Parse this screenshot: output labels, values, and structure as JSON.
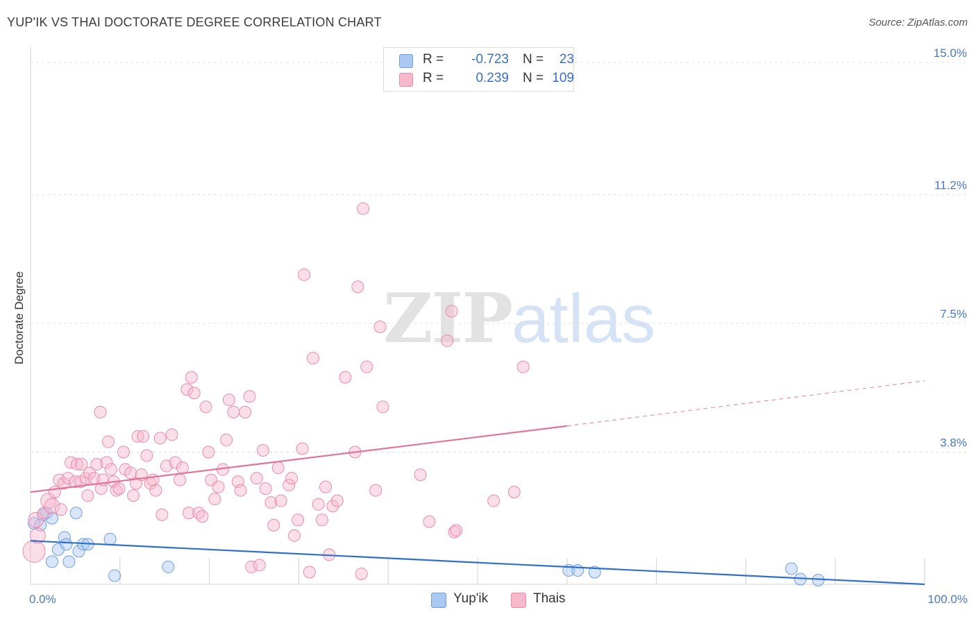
{
  "title": "YUP'IK VS THAI DOCTORATE DEGREE CORRELATION CHART",
  "source": "Source: ZipAtlas.com",
  "watermark": {
    "zip": "ZIP",
    "atlas": "atlas"
  },
  "legend": {
    "rows": [
      {
        "r_label": "R =",
        "r_value": "-0.723",
        "n_label": "N =",
        "n_value": "23",
        "color": "#aac8f2",
        "border": "#6f9ee0"
      },
      {
        "r_label": "R =",
        "r_value": "0.239",
        "n_label": "N =",
        "n_value": "109",
        "color": "#f7b8cc",
        "border": "#e98aa8"
      }
    ]
  },
  "bottom_legend": [
    {
      "label": "Yup'ik",
      "color": "#aac8f2",
      "border": "#6f9ee0"
    },
    {
      "label": "Thais",
      "color": "#f7b8cc",
      "border": "#e98aa8"
    }
  ],
  "chart_data": {
    "type": "scatter",
    "title": "YUP'IK VS THAI DOCTORATE DEGREE CORRELATION CHART",
    "xlabel": "",
    "ylabel": "Doctorate Degree",
    "xlim": [
      0,
      100
    ],
    "ylim": [
      0,
      15.0
    ],
    "x_tick_labels": [
      "0.0%",
      "100.0%"
    ],
    "y_ticks": [
      {
        "value": 3.8,
        "label": "3.8%"
      },
      {
        "value": 7.5,
        "label": "7.5%"
      },
      {
        "value": 11.2,
        "label": "11.2%"
      },
      {
        "value": 15.0,
        "label": "15.0%"
      }
    ],
    "series": [
      {
        "name": "Yup'ik",
        "color": "#aac8f2",
        "stroke": "#6f9ee0",
        "line_color": "#2e6fcc",
        "points": [
          [
            0.4,
            1.75
          ],
          [
            1.1,
            1.7
          ],
          [
            1.8,
            2.05
          ],
          [
            1.4,
            2.0
          ],
          [
            2.4,
            1.9
          ],
          [
            2.4,
            0.65
          ],
          [
            3.8,
            1.35
          ],
          [
            3.1,
            1.0
          ],
          [
            4.0,
            1.15
          ],
          [
            4.3,
            0.65
          ],
          [
            5.1,
            2.05
          ],
          [
            5.4,
            0.95
          ],
          [
            5.9,
            1.15
          ],
          [
            6.4,
            1.15
          ],
          [
            8.9,
            1.3
          ],
          [
            9.4,
            0.25
          ],
          [
            15.4,
            0.5
          ],
          [
            60.2,
            0.4
          ],
          [
            61.2,
            0.4
          ],
          [
            63.1,
            0.35
          ],
          [
            85.1,
            0.45
          ],
          [
            86.1,
            0.15
          ],
          [
            88.1,
            0.12
          ]
        ],
        "trend": {
          "x0": 0,
          "y0": 1.25,
          "x1": 100,
          "y1": 0.0
        }
      },
      {
        "name": "Thais",
        "color": "#f7b8cc",
        "stroke": "#e98aa8",
        "line_color": "#e2749a",
        "points": [
          [
            0.4,
            0.95
          ],
          [
            0.6,
            1.85
          ],
          [
            0.8,
            1.4
          ],
          [
            1.5,
            2.05
          ],
          [
            2.0,
            2.4
          ],
          [
            2.4,
            2.25
          ],
          [
            2.7,
            2.65
          ],
          [
            3.2,
            3.0
          ],
          [
            3.4,
            2.15
          ],
          [
            3.7,
            2.9
          ],
          [
            4.2,
            3.05
          ],
          [
            4.5,
            3.5
          ],
          [
            5.0,
            2.95
          ],
          [
            5.2,
            3.45
          ],
          [
            5.6,
            2.95
          ],
          [
            5.7,
            3.45
          ],
          [
            6.2,
            3.05
          ],
          [
            6.4,
            2.55
          ],
          [
            6.6,
            3.2
          ],
          [
            7.1,
            3.05
          ],
          [
            7.4,
            3.45
          ],
          [
            7.8,
            4.95
          ],
          [
            7.9,
            2.75
          ],
          [
            8.1,
            3.0
          ],
          [
            8.5,
            3.5
          ],
          [
            8.7,
            4.1
          ],
          [
            9.0,
            3.3
          ],
          [
            9.3,
            2.95
          ],
          [
            9.6,
            2.7
          ],
          [
            9.9,
            2.75
          ],
          [
            10.4,
            3.8
          ],
          [
            10.6,
            3.3
          ],
          [
            11.2,
            3.2
          ],
          [
            11.5,
            2.55
          ],
          [
            11.8,
            2.9
          ],
          [
            12.0,
            4.25
          ],
          [
            12.4,
            3.15
          ],
          [
            12.6,
            4.25
          ],
          [
            13.0,
            3.7
          ],
          [
            13.4,
            2.9
          ],
          [
            13.7,
            3.0
          ],
          [
            14.0,
            2.7
          ],
          [
            14.5,
            4.2
          ],
          [
            14.7,
            2.0
          ],
          [
            15.2,
            3.4
          ],
          [
            15.8,
            4.3
          ],
          [
            16.2,
            3.5
          ],
          [
            16.7,
            3.0
          ],
          [
            17.0,
            3.35
          ],
          [
            17.5,
            5.6
          ],
          [
            17.7,
            2.05
          ],
          [
            18.0,
            5.95
          ],
          [
            18.3,
            5.5
          ],
          [
            18.8,
            2.05
          ],
          [
            19.2,
            1.95
          ],
          [
            19.6,
            5.1
          ],
          [
            19.9,
            3.8
          ],
          [
            20.2,
            3.0
          ],
          [
            20.6,
            2.45
          ],
          [
            21.0,
            2.8
          ],
          [
            21.5,
            3.3
          ],
          [
            21.9,
            4.15
          ],
          [
            22.2,
            5.3
          ],
          [
            22.7,
            4.95
          ],
          [
            23.2,
            2.95
          ],
          [
            23.5,
            2.7
          ],
          [
            24.0,
            4.95
          ],
          [
            24.5,
            5.4
          ],
          [
            24.7,
            0.5
          ],
          [
            25.3,
            3.05
          ],
          [
            25.6,
            0.55
          ],
          [
            26.0,
            3.85
          ],
          [
            26.3,
            2.75
          ],
          [
            26.9,
            2.35
          ],
          [
            27.2,
            1.7
          ],
          [
            27.7,
            3.35
          ],
          [
            28.0,
            2.4
          ],
          [
            28.9,
            2.85
          ],
          [
            29.2,
            3.05
          ],
          [
            29.5,
            1.4
          ],
          [
            29.9,
            1.85
          ],
          [
            30.4,
            3.9
          ],
          [
            30.6,
            8.9
          ],
          [
            31.2,
            0.35
          ],
          [
            31.6,
            6.5
          ],
          [
            32.2,
            2.3
          ],
          [
            32.6,
            1.85
          ],
          [
            33.0,
            2.8
          ],
          [
            33.4,
            0.85
          ],
          [
            33.8,
            2.25
          ],
          [
            34.3,
            2.4
          ],
          [
            35.2,
            5.95
          ],
          [
            36.3,
            3.8
          ],
          [
            36.6,
            8.55
          ],
          [
            37.2,
            10.8
          ],
          [
            37.0,
            0.3
          ],
          [
            37.6,
            6.25
          ],
          [
            38.6,
            2.7
          ],
          [
            39.1,
            7.4
          ],
          [
            39.4,
            5.1
          ],
          [
            43.6,
            3.15
          ],
          [
            44.6,
            1.8
          ],
          [
            46.6,
            7.0
          ],
          [
            47.1,
            7.85
          ],
          [
            47.4,
            1.5
          ],
          [
            47.6,
            1.55
          ],
          [
            51.8,
            2.4
          ],
          [
            54.1,
            2.65
          ],
          [
            55.1,
            6.25
          ]
        ],
        "trend": {
          "x0": 0,
          "y0": 2.65,
          "x1": 60,
          "y1": 4.55,
          "x_dash_end": 100,
          "y_dash_end": 5.85
        }
      }
    ]
  }
}
